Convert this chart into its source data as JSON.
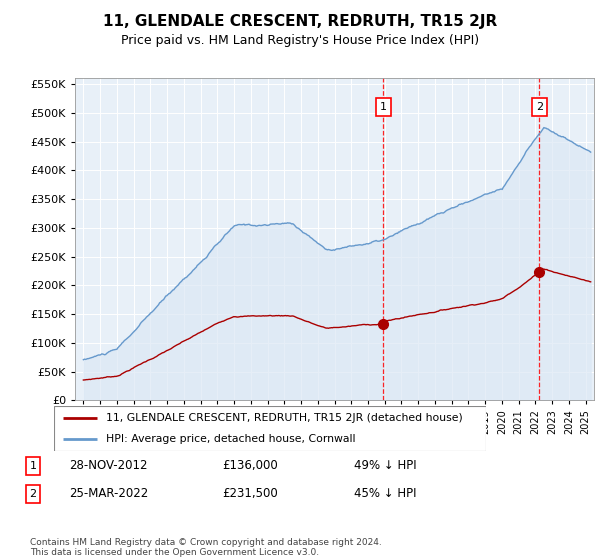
{
  "title": "11, GLENDALE CRESCENT, REDRUTH, TR15 2JR",
  "subtitle": "Price paid vs. HM Land Registry's House Price Index (HPI)",
  "footer": "Contains HM Land Registry data © Crown copyright and database right 2024.\nThis data is licensed under the Open Government Licence v3.0.",
  "legend_line1": "11, GLENDALE CRESCENT, REDRUTH, TR15 2JR (detached house)",
  "legend_line2": "HPI: Average price, detached house, Cornwall",
  "annotation1": {
    "label": "1",
    "date": "28-NOV-2012",
    "price": "£136,000",
    "note": "49% ↓ HPI",
    "year": 2012.92
  },
  "annotation2": {
    "label": "2",
    "date": "25-MAR-2022",
    "price": "£231,500",
    "note": "45% ↓ HPI",
    "year": 2022.23
  },
  "red_color": "#aa0000",
  "blue_color": "#6699cc",
  "fill_color": "#dce8f5",
  "background_color": "#e8f0f8",
  "ylim": [
    0,
    560000
  ],
  "xlim": [
    1994.5,
    2025.5
  ],
  "sale1_price": 136000,
  "sale2_price": 231500,
  "sale1_year": 2012.92,
  "sale2_year": 2022.23
}
